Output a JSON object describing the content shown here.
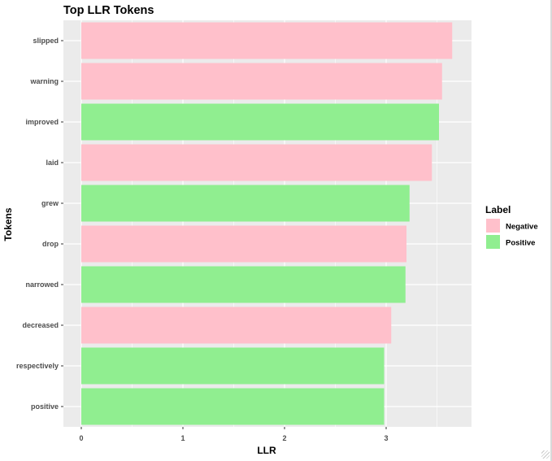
{
  "chart_data": {
    "type": "bar",
    "orientation": "horizontal",
    "title": "Top LLR Tokens",
    "xlabel": "LLR",
    "ylabel": "Tokens",
    "xlim": [
      0,
      3.8
    ],
    "x_ticks": [
      0,
      1,
      2,
      3
    ],
    "grid": true,
    "legend": {
      "title": "Label",
      "placement": "right",
      "entries": [
        {
          "name": "Negative",
          "color": "#FFC0CB"
        },
        {
          "name": "Positive",
          "color": "#90EE90"
        }
      ]
    },
    "categories": [
      "slipped",
      "warning",
      "improved",
      "laid",
      "grew",
      "drop",
      "narrowed",
      "decreased",
      "respectively",
      "positive"
    ],
    "values": [
      3.65,
      3.55,
      3.52,
      3.45,
      3.23,
      3.2,
      3.19,
      3.05,
      2.98,
      2.98
    ],
    "labels": [
      "Negative",
      "Negative",
      "Positive",
      "Negative",
      "Positive",
      "Negative",
      "Positive",
      "Negative",
      "Positive",
      "Positive"
    ]
  },
  "colors": {
    "panel_background": "#EBEBEB",
    "grid": "#FFFFFF",
    "Negative": "#FFC0CB",
    "Positive": "#90EE90"
  }
}
